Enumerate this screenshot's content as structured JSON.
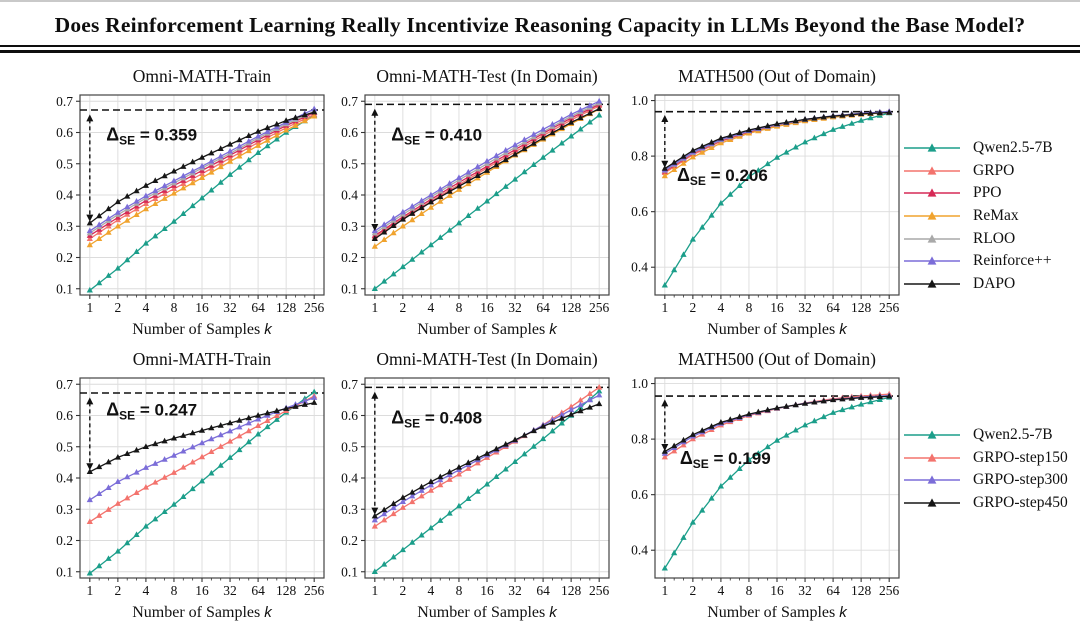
{
  "title": "Does Reinforcement Learning Really Incentivize Reasoning Capacity in LLMs Beyond the Base Model?",
  "axis": {
    "xlabel": "Number of Samples",
    "xlabel_var": "k",
    "x_ticks": [
      1,
      2,
      4,
      8,
      16,
      32,
      64,
      128,
      256
    ]
  },
  "legends": [
    {
      "name": "rl-algorithms",
      "items": [
        {
          "label": "Qwen2.5-7B",
          "color": "#1b9e8a"
        },
        {
          "label": "GRPO",
          "color": "#f3736d"
        },
        {
          "label": "PPO",
          "color": "#d62a56"
        },
        {
          "label": "ReMax",
          "color": "#f0a32e"
        },
        {
          "label": "RLOO",
          "color": "#a9a9a9"
        },
        {
          "label": "Reinforce++",
          "color": "#7b6dd8"
        },
        {
          "label": "DAPO",
          "color": "#161616"
        }
      ]
    },
    {
      "name": "grpo-checkpoints",
      "items": [
        {
          "label": "Qwen2.5-7B",
          "color": "#1b9e8a"
        },
        {
          "label": "GRPO-step150",
          "color": "#f3736d"
        },
        {
          "label": "GRPO-step300",
          "color": "#7b6dd8"
        },
        {
          "label": "GRPO-step450",
          "color": "#161616"
        }
      ]
    }
  ],
  "chart_data": [
    {
      "type": "line",
      "title": "Omni-MATH-Train",
      "xscale": "log2",
      "x": [
        1,
        2,
        4,
        8,
        16,
        32,
        64,
        128,
        256
      ],
      "ylim": [
        0.08,
        0.72
      ],
      "yticks": [
        0.1,
        0.2,
        0.3,
        0.4,
        0.5,
        0.6,
        0.7
      ],
      "dashed_y": 0.672,
      "delta_label": {
        "symbol": "Δ",
        "subscript": "SE",
        "value": "0.359"
      },
      "arrow": {
        "x": 1,
        "from": 0.315,
        "to": 0.658
      },
      "label_pos": [
        1.5,
        0.575
      ],
      "series": [
        {
          "name": "Qwen2.5-7B",
          "color": "#1b9e8a",
          "values": [
            0.095,
            0.165,
            0.245,
            0.315,
            0.39,
            0.465,
            0.535,
            0.6,
            0.655
          ]
        },
        {
          "name": "GRPO",
          "color": "#f3736d",
          "values": [
            0.26,
            0.32,
            0.372,
            0.42,
            0.468,
            0.518,
            0.568,
            0.615,
            0.658
          ]
        },
        {
          "name": "PPO",
          "color": "#d62a56",
          "values": [
            0.27,
            0.328,
            0.382,
            0.43,
            0.478,
            0.527,
            0.576,
            0.622,
            0.664
          ]
        },
        {
          "name": "ReMax",
          "color": "#f0a32e",
          "values": [
            0.24,
            0.3,
            0.355,
            0.405,
            0.455,
            0.507,
            0.558,
            0.607,
            0.652
          ]
        },
        {
          "name": "RLOO",
          "color": "#a9a9a9",
          "values": [
            0.278,
            0.337,
            0.39,
            0.438,
            0.486,
            0.533,
            0.582,
            0.627,
            0.668
          ]
        },
        {
          "name": "Reinforce++",
          "color": "#7b6dd8",
          "values": [
            0.285,
            0.344,
            0.397,
            0.445,
            0.492,
            0.54,
            0.588,
            0.632,
            0.675
          ]
        },
        {
          "name": "DAPO",
          "color": "#161616",
          "values": [
            0.31,
            0.378,
            0.43,
            0.476,
            0.52,
            0.562,
            0.603,
            0.638,
            0.665
          ]
        }
      ]
    },
    {
      "type": "line",
      "title": "Omni-MATH-Test (In Domain)",
      "xscale": "log2",
      "x": [
        1,
        2,
        4,
        8,
        16,
        32,
        64,
        128,
        256
      ],
      "ylim": [
        0.08,
        0.72
      ],
      "yticks": [
        0.1,
        0.2,
        0.3,
        0.4,
        0.5,
        0.6,
        0.7
      ],
      "dashed_y": 0.69,
      "delta_label": {
        "symbol": "Δ",
        "subscript": "SE",
        "value": "0.410"
      },
      "arrow": {
        "x": 1,
        "from": 0.285,
        "to": 0.676
      },
      "label_pos": [
        1.5,
        0.575
      ],
      "series": [
        {
          "name": "Qwen2.5-7B",
          "color": "#1b9e8a",
          "values": [
            0.1,
            0.17,
            0.24,
            0.31,
            0.38,
            0.45,
            0.52,
            0.588,
            0.655
          ]
        },
        {
          "name": "GRPO",
          "color": "#f3736d",
          "values": [
            0.265,
            0.325,
            0.38,
            0.433,
            0.486,
            0.538,
            0.59,
            0.64,
            0.685
          ]
        },
        {
          "name": "PPO",
          "color": "#d62a56",
          "values": [
            0.27,
            0.33,
            0.386,
            0.44,
            0.492,
            0.545,
            0.597,
            0.646,
            0.69
          ]
        },
        {
          "name": "ReMax",
          "color": "#f0a32e",
          "values": [
            0.235,
            0.3,
            0.36,
            0.417,
            0.472,
            0.527,
            0.578,
            0.628,
            0.675
          ]
        },
        {
          "name": "RLOO",
          "color": "#a9a9a9",
          "values": [
            0.278,
            0.338,
            0.394,
            0.448,
            0.5,
            0.552,
            0.602,
            0.652,
            0.694
          ]
        },
        {
          "name": "Reinforce++",
          "color": "#7b6dd8",
          "values": [
            0.285,
            0.345,
            0.4,
            0.455,
            0.508,
            0.56,
            0.61,
            0.658,
            0.7
          ]
        },
        {
          "name": "DAPO",
          "color": "#161616",
          "values": [
            0.26,
            0.322,
            0.377,
            0.428,
            0.478,
            0.53,
            0.582,
            0.632,
            0.676
          ]
        }
      ]
    },
    {
      "type": "line",
      "title": "MATH500 (Out of Domain)",
      "xscale": "log2",
      "x": [
        1,
        2,
        4,
        8,
        16,
        32,
        64,
        128,
        256
      ],
      "ylim": [
        0.3,
        1.02
      ],
      "yticks": [
        0.4,
        0.6,
        0.8,
        1.0
      ],
      "dashed_y": 0.96,
      "delta_label": {
        "symbol": "Δ",
        "subscript": "SE",
        "value": "0.206"
      },
      "arrow": {
        "x": 1,
        "from": 0.758,
        "to": 0.948
      },
      "label_pos": [
        1.35,
        0.71
      ],
      "series": [
        {
          "name": "Qwen2.5-7B",
          "color": "#1b9e8a",
          "values": [
            0.335,
            0.5,
            0.63,
            0.725,
            0.795,
            0.85,
            0.895,
            0.928,
            0.955
          ]
        },
        {
          "name": "GRPO",
          "color": "#f3736d",
          "values": [
            0.74,
            0.805,
            0.853,
            0.886,
            0.91,
            0.928,
            0.942,
            0.952,
            0.958
          ]
        },
        {
          "name": "PPO",
          "color": "#d62a56",
          "values": [
            0.745,
            0.81,
            0.856,
            0.888,
            0.912,
            0.93,
            0.944,
            0.953,
            0.959
          ]
        },
        {
          "name": "ReMax",
          "color": "#f0a32e",
          "values": [
            0.728,
            0.796,
            0.847,
            0.882,
            0.907,
            0.926,
            0.94,
            0.95,
            0.957
          ]
        },
        {
          "name": "RLOO",
          "color": "#a9a9a9",
          "values": [
            0.748,
            0.812,
            0.858,
            0.89,
            0.913,
            0.931,
            0.944,
            0.954,
            0.96
          ]
        },
        {
          "name": "Reinforce++",
          "color": "#7b6dd8",
          "values": [
            0.75,
            0.814,
            0.86,
            0.891,
            0.914,
            0.932,
            0.945,
            0.954,
            0.96
          ]
        },
        {
          "name": "DAPO",
          "color": "#161616",
          "values": [
            0.755,
            0.82,
            0.864,
            0.894,
            0.916,
            0.932,
            0.944,
            0.952,
            0.957
          ]
        }
      ]
    },
    {
      "type": "line",
      "title": "Omni-MATH-Train",
      "xscale": "log2",
      "x": [
        1,
        2,
        4,
        8,
        16,
        32,
        64,
        128,
        256
      ],
      "ylim": [
        0.08,
        0.72
      ],
      "yticks": [
        0.1,
        0.2,
        0.3,
        0.4,
        0.5,
        0.6,
        0.7
      ],
      "dashed_y": 0.672,
      "delta_label": {
        "symbol": "Δ",
        "subscript": "SE",
        "value": "0.247"
      },
      "arrow": {
        "x": 1,
        "from": 0.425,
        "to": 0.658
      },
      "label_pos": [
        1.5,
        0.6
      ],
      "series": [
        {
          "name": "Qwen2.5-7B",
          "color": "#1b9e8a",
          "values": [
            0.095,
            0.165,
            0.245,
            0.315,
            0.39,
            0.465,
            0.54,
            0.61,
            0.675
          ]
        },
        {
          "name": "GRPO-step150",
          "color": "#f3736d",
          "values": [
            0.26,
            0.318,
            0.37,
            0.417,
            0.467,
            0.517,
            0.567,
            0.615,
            0.662
          ]
        },
        {
          "name": "GRPO-step300",
          "color": "#7b6dd8",
          "values": [
            0.33,
            0.388,
            0.433,
            0.472,
            0.512,
            0.55,
            0.588,
            0.624,
            0.657
          ]
        },
        {
          "name": "GRPO-step450",
          "color": "#161616",
          "values": [
            0.42,
            0.466,
            0.5,
            0.527,
            0.552,
            0.576,
            0.6,
            0.622,
            0.641
          ]
        }
      ]
    },
    {
      "type": "line",
      "title": "Omni-MATH-Test (In Domain)",
      "xscale": "log2",
      "x": [
        1,
        2,
        4,
        8,
        16,
        32,
        64,
        128,
        256
      ],
      "ylim": [
        0.08,
        0.72
      ],
      "yticks": [
        0.1,
        0.2,
        0.3,
        0.4,
        0.5,
        0.6,
        0.7
      ],
      "dashed_y": 0.69,
      "delta_label": {
        "symbol": "Δ",
        "subscript": "SE",
        "value": "0.408"
      },
      "arrow": {
        "x": 1,
        "from": 0.283,
        "to": 0.676
      },
      "label_pos": [
        1.5,
        0.575
      ],
      "series": [
        {
          "name": "Qwen2.5-7B",
          "color": "#1b9e8a",
          "values": [
            0.1,
            0.17,
            0.24,
            0.31,
            0.38,
            0.452,
            0.525,
            0.6,
            0.678
          ]
        },
        {
          "name": "GRPO-step150",
          "color": "#f3736d",
          "values": [
            0.245,
            0.305,
            0.36,
            0.412,
            0.465,
            0.517,
            0.57,
            0.628,
            0.69
          ]
        },
        {
          "name": "GRPO-step300",
          "color": "#7b6dd8",
          "values": [
            0.265,
            0.324,
            0.377,
            0.426,
            0.473,
            0.52,
            0.569,
            0.618,
            0.665
          ]
        },
        {
          "name": "GRPO-step450",
          "color": "#161616",
          "values": [
            0.278,
            0.337,
            0.388,
            0.434,
            0.478,
            0.522,
            0.565,
            0.603,
            0.637
          ]
        }
      ]
    },
    {
      "type": "line",
      "title": "MATH500 (Out of Domain)",
      "xscale": "log2",
      "x": [
        1,
        2,
        4,
        8,
        16,
        32,
        64,
        128,
        256
      ],
      "ylim": [
        0.3,
        1.02
      ],
      "yticks": [
        0.4,
        0.6,
        0.8,
        1.0
      ],
      "dashed_y": 0.955,
      "delta_label": {
        "symbol": "Δ",
        "subscript": "SE",
        "value": "0.199"
      },
      "arrow": {
        "x": 1,
        "from": 0.757,
        "to": 0.943
      },
      "label_pos": [
        1.45,
        0.71
      ],
      "series": [
        {
          "name": "Qwen2.5-7B",
          "color": "#1b9e8a",
          "values": [
            0.335,
            0.5,
            0.63,
            0.725,
            0.795,
            0.85,
            0.895,
            0.925,
            0.95
          ]
        },
        {
          "name": "GRPO-step150",
          "color": "#f3736d",
          "values": [
            0.735,
            0.8,
            0.85,
            0.885,
            0.91,
            0.93,
            0.945,
            0.955,
            0.962
          ]
        },
        {
          "name": "GRPO-step300",
          "color": "#7b6dd8",
          "values": [
            0.748,
            0.81,
            0.856,
            0.888,
            0.911,
            0.929,
            0.942,
            0.951,
            0.957
          ]
        },
        {
          "name": "GRPO-step450",
          "color": "#161616",
          "values": [
            0.755,
            0.816,
            0.86,
            0.89,
            0.912,
            0.928,
            0.941,
            0.949,
            0.954
          ]
        }
      ]
    }
  ]
}
